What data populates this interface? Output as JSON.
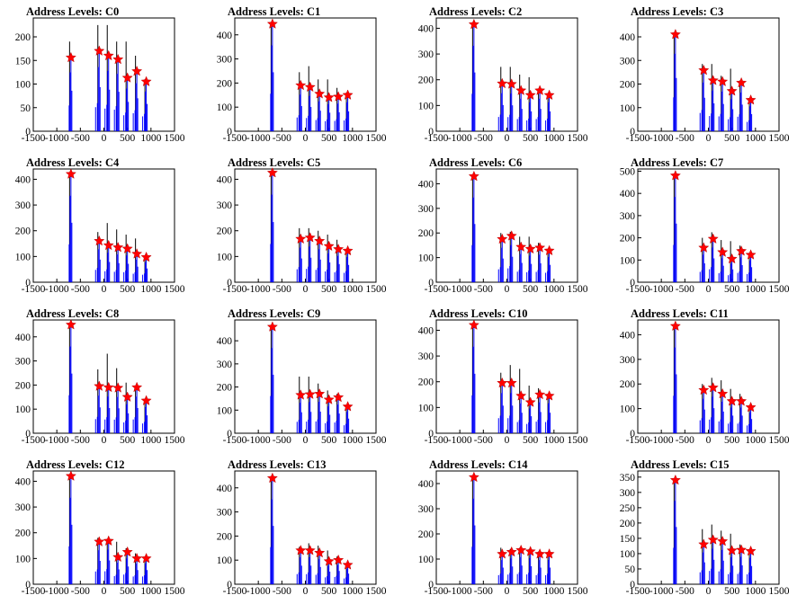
{
  "colors": {
    "histogram": "#0000ff",
    "outline": "#000000",
    "marker": "#ff0000"
  },
  "x_axis": {
    "xlim": [
      -1500,
      1500
    ],
    "ticks": [
      -1500,
      -1000,
      -500,
      0,
      500,
      1000,
      1500
    ]
  },
  "marker_shape": "star",
  "chart_data": [
    {
      "type": "bar",
      "title": "Address Levels: C0",
      "ylim": [
        0,
        240
      ],
      "yticks": [
        0,
        50,
        100,
        150,
        200
      ],
      "peaks": [
        {
          "x": -700,
          "y": 156,
          "max": 190
        },
        {
          "x": -100,
          "y": 170,
          "max": 225
        },
        {
          "x": 100,
          "y": 160,
          "max": 225
        },
        {
          "x": 300,
          "y": 152,
          "max": 190
        },
        {
          "x": 500,
          "y": 113,
          "max": 190
        },
        {
          "x": 700,
          "y": 127,
          "max": 160
        },
        {
          "x": 900,
          "y": 105,
          "max": 110
        }
      ]
    },
    {
      "type": "bar",
      "title": "Address Levels: C1",
      "ylim": [
        0,
        470
      ],
      "yticks": [
        0,
        100,
        200,
        300,
        400
      ],
      "peaks": [
        {
          "x": -700,
          "y": 445,
          "max": 450
        },
        {
          "x": -100,
          "y": 190,
          "max": 245
        },
        {
          "x": 100,
          "y": 183,
          "max": 270
        },
        {
          "x": 300,
          "y": 155,
          "max": 215
        },
        {
          "x": 500,
          "y": 140,
          "max": 215
        },
        {
          "x": 700,
          "y": 143,
          "max": 180
        },
        {
          "x": 900,
          "y": 150,
          "max": 160
        }
      ]
    },
    {
      "type": "bar",
      "title": "Address Levels: C2",
      "ylim": [
        0,
        440
      ],
      "yticks": [
        0,
        100,
        200,
        300,
        400
      ],
      "peaks": [
        {
          "x": -700,
          "y": 415,
          "max": 420
        },
        {
          "x": -100,
          "y": 185,
          "max": 250
        },
        {
          "x": 100,
          "y": 183,
          "max": 250
        },
        {
          "x": 300,
          "y": 158,
          "max": 220
        },
        {
          "x": 500,
          "y": 140,
          "max": 210
        },
        {
          "x": 700,
          "y": 158,
          "max": 165
        },
        {
          "x": 900,
          "y": 140,
          "max": 145
        }
      ]
    },
    {
      "type": "bar",
      "title": "Address Levels: C3",
      "ylim": [
        0,
        480
      ],
      "yticks": [
        0,
        100,
        200,
        300,
        400
      ],
      "peaks": [
        {
          "x": -700,
          "y": 410,
          "max": 415
        },
        {
          "x": -100,
          "y": 258,
          "max": 285
        },
        {
          "x": 100,
          "y": 215,
          "max": 285
        },
        {
          "x": 300,
          "y": 210,
          "max": 235
        },
        {
          "x": 500,
          "y": 170,
          "max": 265
        },
        {
          "x": 700,
          "y": 205,
          "max": 215
        },
        {
          "x": 900,
          "y": 132,
          "max": 140
        }
      ]
    },
    {
      "type": "bar",
      "title": "Address Levels: C4",
      "ylim": [
        0,
        440
      ],
      "yticks": [
        0,
        100,
        200,
        300,
        400
      ],
      "peaks": [
        {
          "x": -700,
          "y": 420,
          "max": 425
        },
        {
          "x": -100,
          "y": 160,
          "max": 195
        },
        {
          "x": 100,
          "y": 143,
          "max": 230
        },
        {
          "x": 300,
          "y": 135,
          "max": 205
        },
        {
          "x": 500,
          "y": 130,
          "max": 185
        },
        {
          "x": 700,
          "y": 110,
          "max": 170
        },
        {
          "x": 900,
          "y": 97,
          "max": 100
        }
      ]
    },
    {
      "type": "bar",
      "title": "Address Levels: C5",
      "ylim": [
        0,
        440
      ],
      "yticks": [
        0,
        100,
        200,
        300,
        400
      ],
      "peaks": [
        {
          "x": -700,
          "y": 425,
          "max": 430
        },
        {
          "x": -100,
          "y": 168,
          "max": 210
        },
        {
          "x": 100,
          "y": 173,
          "max": 210
        },
        {
          "x": 300,
          "y": 160,
          "max": 200
        },
        {
          "x": 500,
          "y": 140,
          "max": 185
        },
        {
          "x": 700,
          "y": 128,
          "max": 165
        },
        {
          "x": 900,
          "y": 122,
          "max": 125
        }
      ]
    },
    {
      "type": "bar",
      "title": "Address Levels: C6",
      "ylim": [
        0,
        460
      ],
      "yticks": [
        0,
        100,
        200,
        300,
        400
      ],
      "peaks": [
        {
          "x": -700,
          "y": 430,
          "max": 435
        },
        {
          "x": -100,
          "y": 175,
          "max": 200
        },
        {
          "x": 100,
          "y": 188,
          "max": 205
        },
        {
          "x": 300,
          "y": 143,
          "max": 185
        },
        {
          "x": 500,
          "y": 135,
          "max": 185
        },
        {
          "x": 700,
          "y": 140,
          "max": 160
        },
        {
          "x": 900,
          "y": 128,
          "max": 135
        }
      ]
    },
    {
      "type": "bar",
      "title": "Address Levels: C7",
      "ylim": [
        0,
        510
      ],
      "yticks": [
        0,
        100,
        200,
        300,
        400,
        500
      ],
      "peaks": [
        {
          "x": -700,
          "y": 480,
          "max": 485
        },
        {
          "x": -100,
          "y": 155,
          "max": 200
        },
        {
          "x": 100,
          "y": 195,
          "max": 225
        },
        {
          "x": 300,
          "y": 135,
          "max": 190
        },
        {
          "x": 500,
          "y": 105,
          "max": 185
        },
        {
          "x": 700,
          "y": 140,
          "max": 165
        },
        {
          "x": 900,
          "y": 123,
          "max": 125
        }
      ]
    },
    {
      "type": "bar",
      "title": "Address Levels: C8",
      "ylim": [
        0,
        470
      ],
      "yticks": [
        0,
        100,
        200,
        300,
        400
      ],
      "peaks": [
        {
          "x": -700,
          "y": 450,
          "max": 455
        },
        {
          "x": -100,
          "y": 195,
          "max": 265
        },
        {
          "x": 100,
          "y": 190,
          "max": 330
        },
        {
          "x": 300,
          "y": 188,
          "max": 270
        },
        {
          "x": 500,
          "y": 150,
          "max": 210
        },
        {
          "x": 700,
          "y": 190,
          "max": 195
        },
        {
          "x": 900,
          "y": 135,
          "max": 140
        }
      ]
    },
    {
      "type": "bar",
      "title": "Address Levels: C9",
      "ylim": [
        0,
        490
      ],
      "yticks": [
        0,
        100,
        200,
        300,
        400
      ],
      "peaks": [
        {
          "x": -700,
          "y": 460,
          "max": 465
        },
        {
          "x": -100,
          "y": 165,
          "max": 245
        },
        {
          "x": 100,
          "y": 168,
          "max": 245
        },
        {
          "x": 300,
          "y": 170,
          "max": 215
        },
        {
          "x": 500,
          "y": 145,
          "max": 185
        },
        {
          "x": 700,
          "y": 155,
          "max": 170
        },
        {
          "x": 900,
          "y": 115,
          "max": 120
        }
      ]
    },
    {
      "type": "bar",
      "title": "Address Levels: C10",
      "ylim": [
        0,
        440
      ],
      "yticks": [
        0,
        100,
        200,
        300,
        400
      ],
      "peaks": [
        {
          "x": -700,
          "y": 420,
          "max": 425
        },
        {
          "x": -100,
          "y": 195,
          "max": 235
        },
        {
          "x": 100,
          "y": 195,
          "max": 265
        },
        {
          "x": 300,
          "y": 145,
          "max": 250
        },
        {
          "x": 500,
          "y": 120,
          "max": 185
        },
        {
          "x": 700,
          "y": 150,
          "max": 175
        },
        {
          "x": 900,
          "y": 145,
          "max": 150
        }
      ]
    },
    {
      "type": "bar",
      "title": "Address Levels: C11",
      "ylim": [
        0,
        460
      ],
      "yticks": [
        0,
        100,
        200,
        300,
        400
      ],
      "peaks": [
        {
          "x": -700,
          "y": 435,
          "max": 440
        },
        {
          "x": -100,
          "y": 175,
          "max": 200
        },
        {
          "x": 100,
          "y": 185,
          "max": 225
        },
        {
          "x": 300,
          "y": 160,
          "max": 215
        },
        {
          "x": 500,
          "y": 130,
          "max": 180
        },
        {
          "x": 700,
          "y": 130,
          "max": 160
        },
        {
          "x": 900,
          "y": 105,
          "max": 110
        }
      ]
    },
    {
      "type": "bar",
      "title": "Address Levels: C12",
      "ylim": [
        0,
        440
      ],
      "yticks": [
        0,
        100,
        200,
        300,
        400
      ],
      "peaks": [
        {
          "x": -700,
          "y": 420,
          "max": 425
        },
        {
          "x": -100,
          "y": 165,
          "max": 180
        },
        {
          "x": 100,
          "y": 168,
          "max": 175
        },
        {
          "x": 300,
          "y": 105,
          "max": 165
        },
        {
          "x": 500,
          "y": 125,
          "max": 140
        },
        {
          "x": 700,
          "y": 100,
          "max": 120
        },
        {
          "x": 900,
          "y": 100,
          "max": 105
        }
      ]
    },
    {
      "type": "bar",
      "title": "Address Levels: C13",
      "ylim": [
        0,
        470
      ],
      "yticks": [
        0,
        100,
        200,
        300,
        400
      ],
      "peaks": [
        {
          "x": -700,
          "y": 440,
          "max": 445
        },
        {
          "x": -100,
          "y": 140,
          "max": 155
        },
        {
          "x": 100,
          "y": 140,
          "max": 170
        },
        {
          "x": 300,
          "y": 130,
          "max": 160
        },
        {
          "x": 500,
          "y": 95,
          "max": 140
        },
        {
          "x": 700,
          "y": 100,
          "max": 115
        },
        {
          "x": 900,
          "y": 80,
          "max": 85
        }
      ]
    },
    {
      "type": "bar",
      "title": "Address Levels: C14",
      "ylim": [
        0,
        450
      ],
      "yticks": [
        0,
        100,
        200,
        300,
        400
      ],
      "peaks": [
        {
          "x": -700,
          "y": 425,
          "max": 430
        },
        {
          "x": -100,
          "y": 120,
          "max": 145
        },
        {
          "x": 100,
          "y": 128,
          "max": 140
        },
        {
          "x": 300,
          "y": 135,
          "max": 145
        },
        {
          "x": 500,
          "y": 130,
          "max": 140
        },
        {
          "x": 700,
          "y": 120,
          "max": 130
        },
        {
          "x": 900,
          "y": 120,
          "max": 125
        }
      ]
    },
    {
      "type": "bar",
      "title": "Address Levels: C15",
      "ylim": [
        0,
        370
      ],
      "yticks": [
        0,
        50,
        100,
        150,
        200,
        250,
        300,
        350
      ],
      "peaks": [
        {
          "x": -700,
          "y": 340,
          "max": 345
        },
        {
          "x": -100,
          "y": 130,
          "max": 180
        },
        {
          "x": 100,
          "y": 145,
          "max": 195
        },
        {
          "x": 300,
          "y": 140,
          "max": 175
        },
        {
          "x": 500,
          "y": 110,
          "max": 165
        },
        {
          "x": 700,
          "y": 112,
          "max": 130
        },
        {
          "x": 900,
          "y": 108,
          "max": 112
        }
      ]
    }
  ]
}
